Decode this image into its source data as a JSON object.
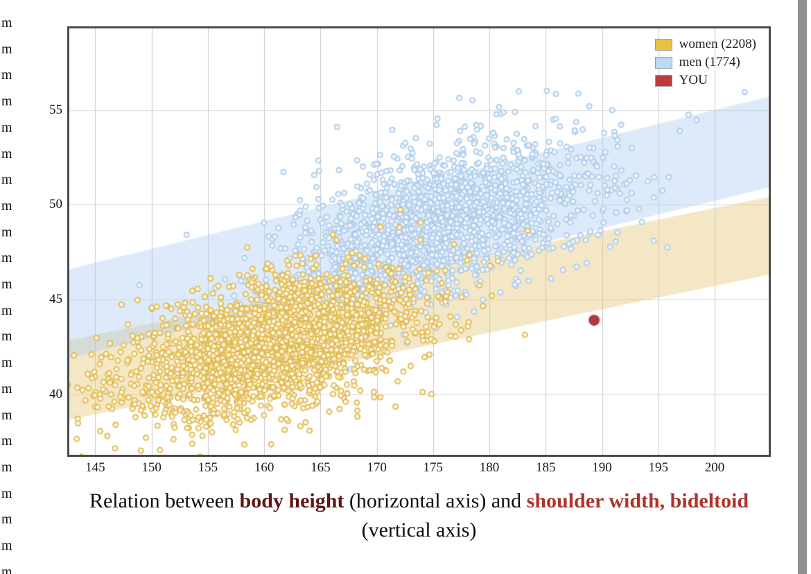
{
  "page": {
    "background": "#ffffff"
  },
  "left_margin": {
    "items": [
      "m",
      "m",
      "m",
      "m",
      "m",
      "m",
      "m",
      "m",
      "m",
      "m",
      "m",
      "m",
      "m",
      "m",
      "m",
      "m",
      "m",
      "m",
      "m",
      "m",
      "m",
      "m"
    ],
    "start_y": 23,
    "step_y": 37.7
  },
  "chart_data": {
    "type": "scatter",
    "title": "Relation between body height (horizontal axis) and shoulder width, bideltoid (vertical axis)",
    "xlabel": "body height",
    "ylabel": "shoulder width, bideltoid",
    "xlim": [
      142.7,
      204.8
    ],
    "ylim": [
      36.8,
      59.3
    ],
    "x_ticks": [
      145,
      150,
      155,
      160,
      165,
      170,
      175,
      180,
      185,
      190,
      195,
      200
    ],
    "y_ticks": [
      40,
      45,
      50,
      55
    ],
    "grid": true,
    "grid_color_v": "#c8c8c8",
    "grid_color_h": "#d7d7d7",
    "legend_position": "top-right",
    "series": [
      {
        "name": "women (2208)",
        "count": 2208,
        "marker": {
          "ring": "#e2ba50",
          "fill": "#fcf7e5",
          "radius": 3.6
        },
        "distribution": {
          "mean_height": 160.7,
          "sd_height": 6.6,
          "mean_shoulder": 42.6,
          "sd_shoulder": 2.0,
          "correlation": 0.5,
          "seed": 1337
        },
        "band": {
          "fill": "rgba(226,198,120,0.42)",
          "top_edge": [
            [
              142.7,
              42.85
            ],
            [
              204.8,
              50.4
            ]
          ],
          "bottom_edge": [
            [
              142.7,
              38.65
            ],
            [
              204.8,
              46.3
            ]
          ]
        }
      },
      {
        "name": "men (1774)",
        "count": 1774,
        "marker": {
          "ring": "#afccea",
          "fill": "#f0f6fc",
          "radius": 3.6
        },
        "distribution": {
          "mean_height": 176.2,
          "sd_height": 7.0,
          "mean_shoulder": 49.0,
          "sd_shoulder": 2.2,
          "correlation": 0.5,
          "seed": 4242
        },
        "band": {
          "fill": "rgba(168,203,241,0.40)",
          "top_edge": [
            [
              142.7,
              46.6
            ],
            [
              204.8,
              55.7
            ]
          ],
          "bottom_edge": [
            [
              142.7,
              41.9
            ],
            [
              204.8,
              50.9
            ]
          ]
        }
      }
    ],
    "you_point": {
      "label": "YOU",
      "height": 189.3,
      "shoulder": 43.9,
      "color": "#b13a3a",
      "radius": 8
    }
  },
  "legend": {
    "items": [
      {
        "label": "women (2208)",
        "swatch": "#e9c33e"
      },
      {
        "label": "men (1774)",
        "swatch": "#badaf6"
      },
      {
        "label": "YOU",
        "swatch": "#c03a3c"
      }
    ]
  },
  "caption": {
    "line1_parts": [
      {
        "text": "Relation between ",
        "bold": false,
        "color": "#0d0d0d"
      },
      {
        "text": "body height",
        "bold": true,
        "color": "#5e1616"
      },
      {
        "text": " (horizontal axis) and ",
        "bold": false,
        "color": "#0d0d0d"
      },
      {
        "text": "shoulder width, bideltoid",
        "bold": true,
        "color": "#ad342c"
      }
    ],
    "line2": "(vertical axis)"
  },
  "scrollbar": {
    "color": "#8e8e8e"
  }
}
